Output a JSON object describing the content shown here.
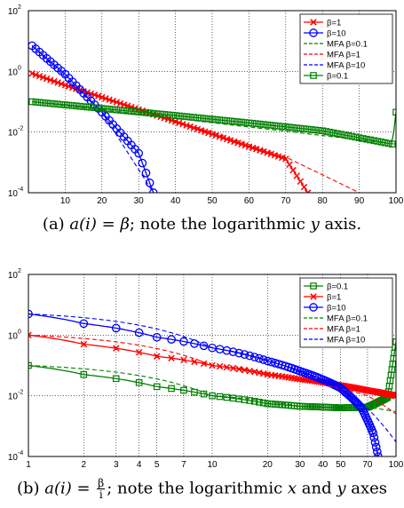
{
  "chart_data": [
    {
      "type": "line",
      "xscale": "linear",
      "yscale": "log",
      "xlim": [
        0,
        100
      ],
      "ylim": [
        0.0001,
        100
      ],
      "xticks": [
        10,
        20,
        30,
        40,
        50,
        60,
        70,
        80,
        90,
        100
      ],
      "xtick_labels": [
        "10",
        "20",
        "30",
        "40",
        "50",
        "60",
        "70",
        "80",
        "90",
        "100"
      ],
      "yticks": [
        0.0001,
        0.01,
        1,
        100
      ],
      "ytick_labels": [
        {
          "base": "10",
          "exp": "-4"
        },
        {
          "base": "10",
          "exp": "-2"
        },
        {
          "base": "10",
          "exp": "0"
        },
        {
          "base": "10",
          "exp": "2"
        }
      ],
      "grid": true,
      "legend_position": "top-right",
      "caption": {
        "prefix": "(a) ",
        "math": "a(i) = β",
        "rest": "; note the logarithmic ",
        "var": "y",
        "suffix": " axis."
      },
      "series": [
        {
          "name": "β=1",
          "color": "#ff0000",
          "marker": "x",
          "style": "solid",
          "x": [
            1,
            10,
            20,
            30,
            40,
            50,
            60,
            70,
            76
          ],
          "y": [
            0.85,
            0.35,
            0.14,
            0.055,
            0.022,
            0.0085,
            0.0033,
            0.0013,
            0.0001
          ]
        },
        {
          "name": "β=10",
          "color": "#0000ff",
          "marker": "o",
          "style": "solid",
          "x": [
            1,
            10,
            20,
            30,
            34
          ],
          "y": [
            7,
            0.8,
            0.045,
            0.002,
            0.0001
          ]
        },
        {
          "name": "MFA β=0.1",
          "color": "#008000",
          "marker": "",
          "style": "dashed",
          "x": [
            1,
            100
          ],
          "y": [
            0.1,
            0.004
          ]
        },
        {
          "name": "MFA β=1",
          "color": "#ff0000",
          "marker": "",
          "style": "dashed",
          "x": [
            1,
            30,
            50,
            70,
            90
          ],
          "y": [
            0.85,
            0.055,
            0.01,
            0.0015,
            0.0001
          ]
        },
        {
          "name": "MFA β=10",
          "color": "#0000ff",
          "marker": "",
          "style": "dashed",
          "x": [
            1,
            20,
            34
          ],
          "y": [
            7,
            0.045,
            0.0001
          ]
        },
        {
          "name": "β=0.1",
          "color": "#008000",
          "marker": "s",
          "style": "solid",
          "x": [
            1,
            20,
            40,
            60,
            80,
            99,
            100
          ],
          "y": [
            0.1,
            0.06,
            0.035,
            0.02,
            0.011,
            0.004,
            0.045
          ]
        }
      ]
    },
    {
      "type": "line",
      "xscale": "log",
      "yscale": "log",
      "xlim": [
        1,
        100
      ],
      "ylim": [
        0.0001,
        100
      ],
      "xticks": [
        1,
        2,
        3,
        4,
        5,
        7,
        10,
        20,
        30,
        40,
        50,
        70,
        100
      ],
      "xtick_labels": [
        "1",
        "2",
        "3",
        "4",
        "5",
        "7",
        "10",
        "20",
        "30",
        "40",
        "50",
        "70",
        "100"
      ],
      "yticks": [
        0.0001,
        0.01,
        1,
        100
      ],
      "ytick_labels": [
        {
          "base": "10",
          "exp": "-4"
        },
        {
          "base": "10",
          "exp": "-2"
        },
        {
          "base": "10",
          "exp": "0"
        },
        {
          "base": "10",
          "exp": "2"
        }
      ],
      "grid": true,
      "legend_position": "top-right",
      "caption": {
        "prefix": "(b) ",
        "math": "a(i) = ",
        "frac_num": "β",
        "frac_den": "i",
        "rest": "; note the logarithmic ",
        "var_x": "x",
        "and": " and ",
        "var_y": "y",
        "suffix": " axes"
      },
      "series": [
        {
          "name": "β=0.1",
          "color": "#008000",
          "marker": "s",
          "style": "solid",
          "x": [
            1,
            2,
            5,
            10,
            20,
            30,
            50,
            70,
            90,
            100
          ],
          "y": [
            0.1,
            0.05,
            0.02,
            0.01,
            0.0055,
            0.0045,
            0.004,
            0.0042,
            0.009,
            0.6
          ]
        },
        {
          "name": "β=1",
          "color": "#ff0000",
          "marker": "x",
          "style": "solid",
          "x": [
            1,
            2,
            5,
            10,
            20,
            30,
            50,
            70,
            100
          ],
          "y": [
            1,
            0.5,
            0.2,
            0.1,
            0.05,
            0.035,
            0.022,
            0.015,
            0.01
          ]
        },
        {
          "name": "β=10",
          "color": "#0000ff",
          "marker": "o",
          "style": "solid",
          "x": [
            1,
            2,
            5,
            10,
            20,
            30,
            50,
            65,
            75,
            80
          ],
          "y": [
            5,
            2.4,
            0.85,
            0.38,
            0.14,
            0.065,
            0.018,
            0.004,
            0.0006,
            0.0001
          ]
        },
        {
          "name": "MFA β=0.1",
          "color": "#008000",
          "marker": "",
          "style": "dashed",
          "x": [
            1,
            10,
            30,
            50,
            70,
            100
          ],
          "y": [
            0.1,
            0.01,
            0.0045,
            0.004,
            0.0042,
            0.003
          ]
        },
        {
          "name": "MFA β=1",
          "color": "#ff0000",
          "marker": "",
          "style": "dashed",
          "x": [
            1,
            10,
            30,
            50,
            70,
            100
          ],
          "y": [
            1,
            0.1,
            0.033,
            0.017,
            0.01,
            0.0025
          ]
        },
        {
          "name": "MFA β=10",
          "color": "#0000ff",
          "marker": "",
          "style": "dashed",
          "x": [
            1,
            10,
            30,
            50,
            70,
            100
          ],
          "y": [
            5,
            0.38,
            0.06,
            0.017,
            0.0038,
            0.0003
          ]
        }
      ]
    }
  ]
}
